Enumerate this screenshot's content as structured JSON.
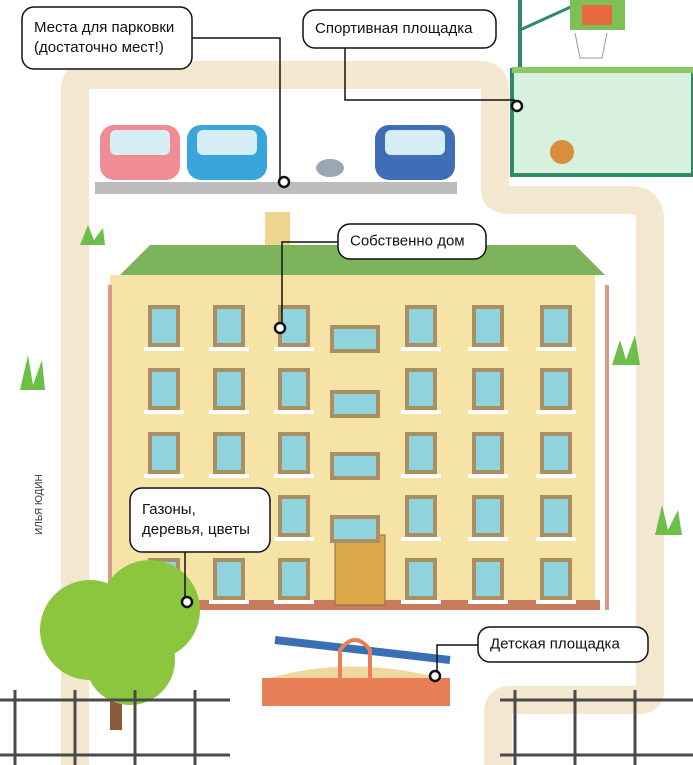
{
  "callouts": [
    {
      "lines": [
        "Места для парковки",
        "(достаточно мест!)"
      ]
    },
    {
      "lines": [
        "Спортивная площадка"
      ]
    },
    {
      "lines": [
        "Собственно дом"
      ]
    },
    {
      "lines": [
        "Газоны,",
        "деревья, цветы"
      ]
    },
    {
      "lines": [
        "Детская площадка"
      ]
    }
  ],
  "credit": "ИЛЬЯ ЮДИН"
}
